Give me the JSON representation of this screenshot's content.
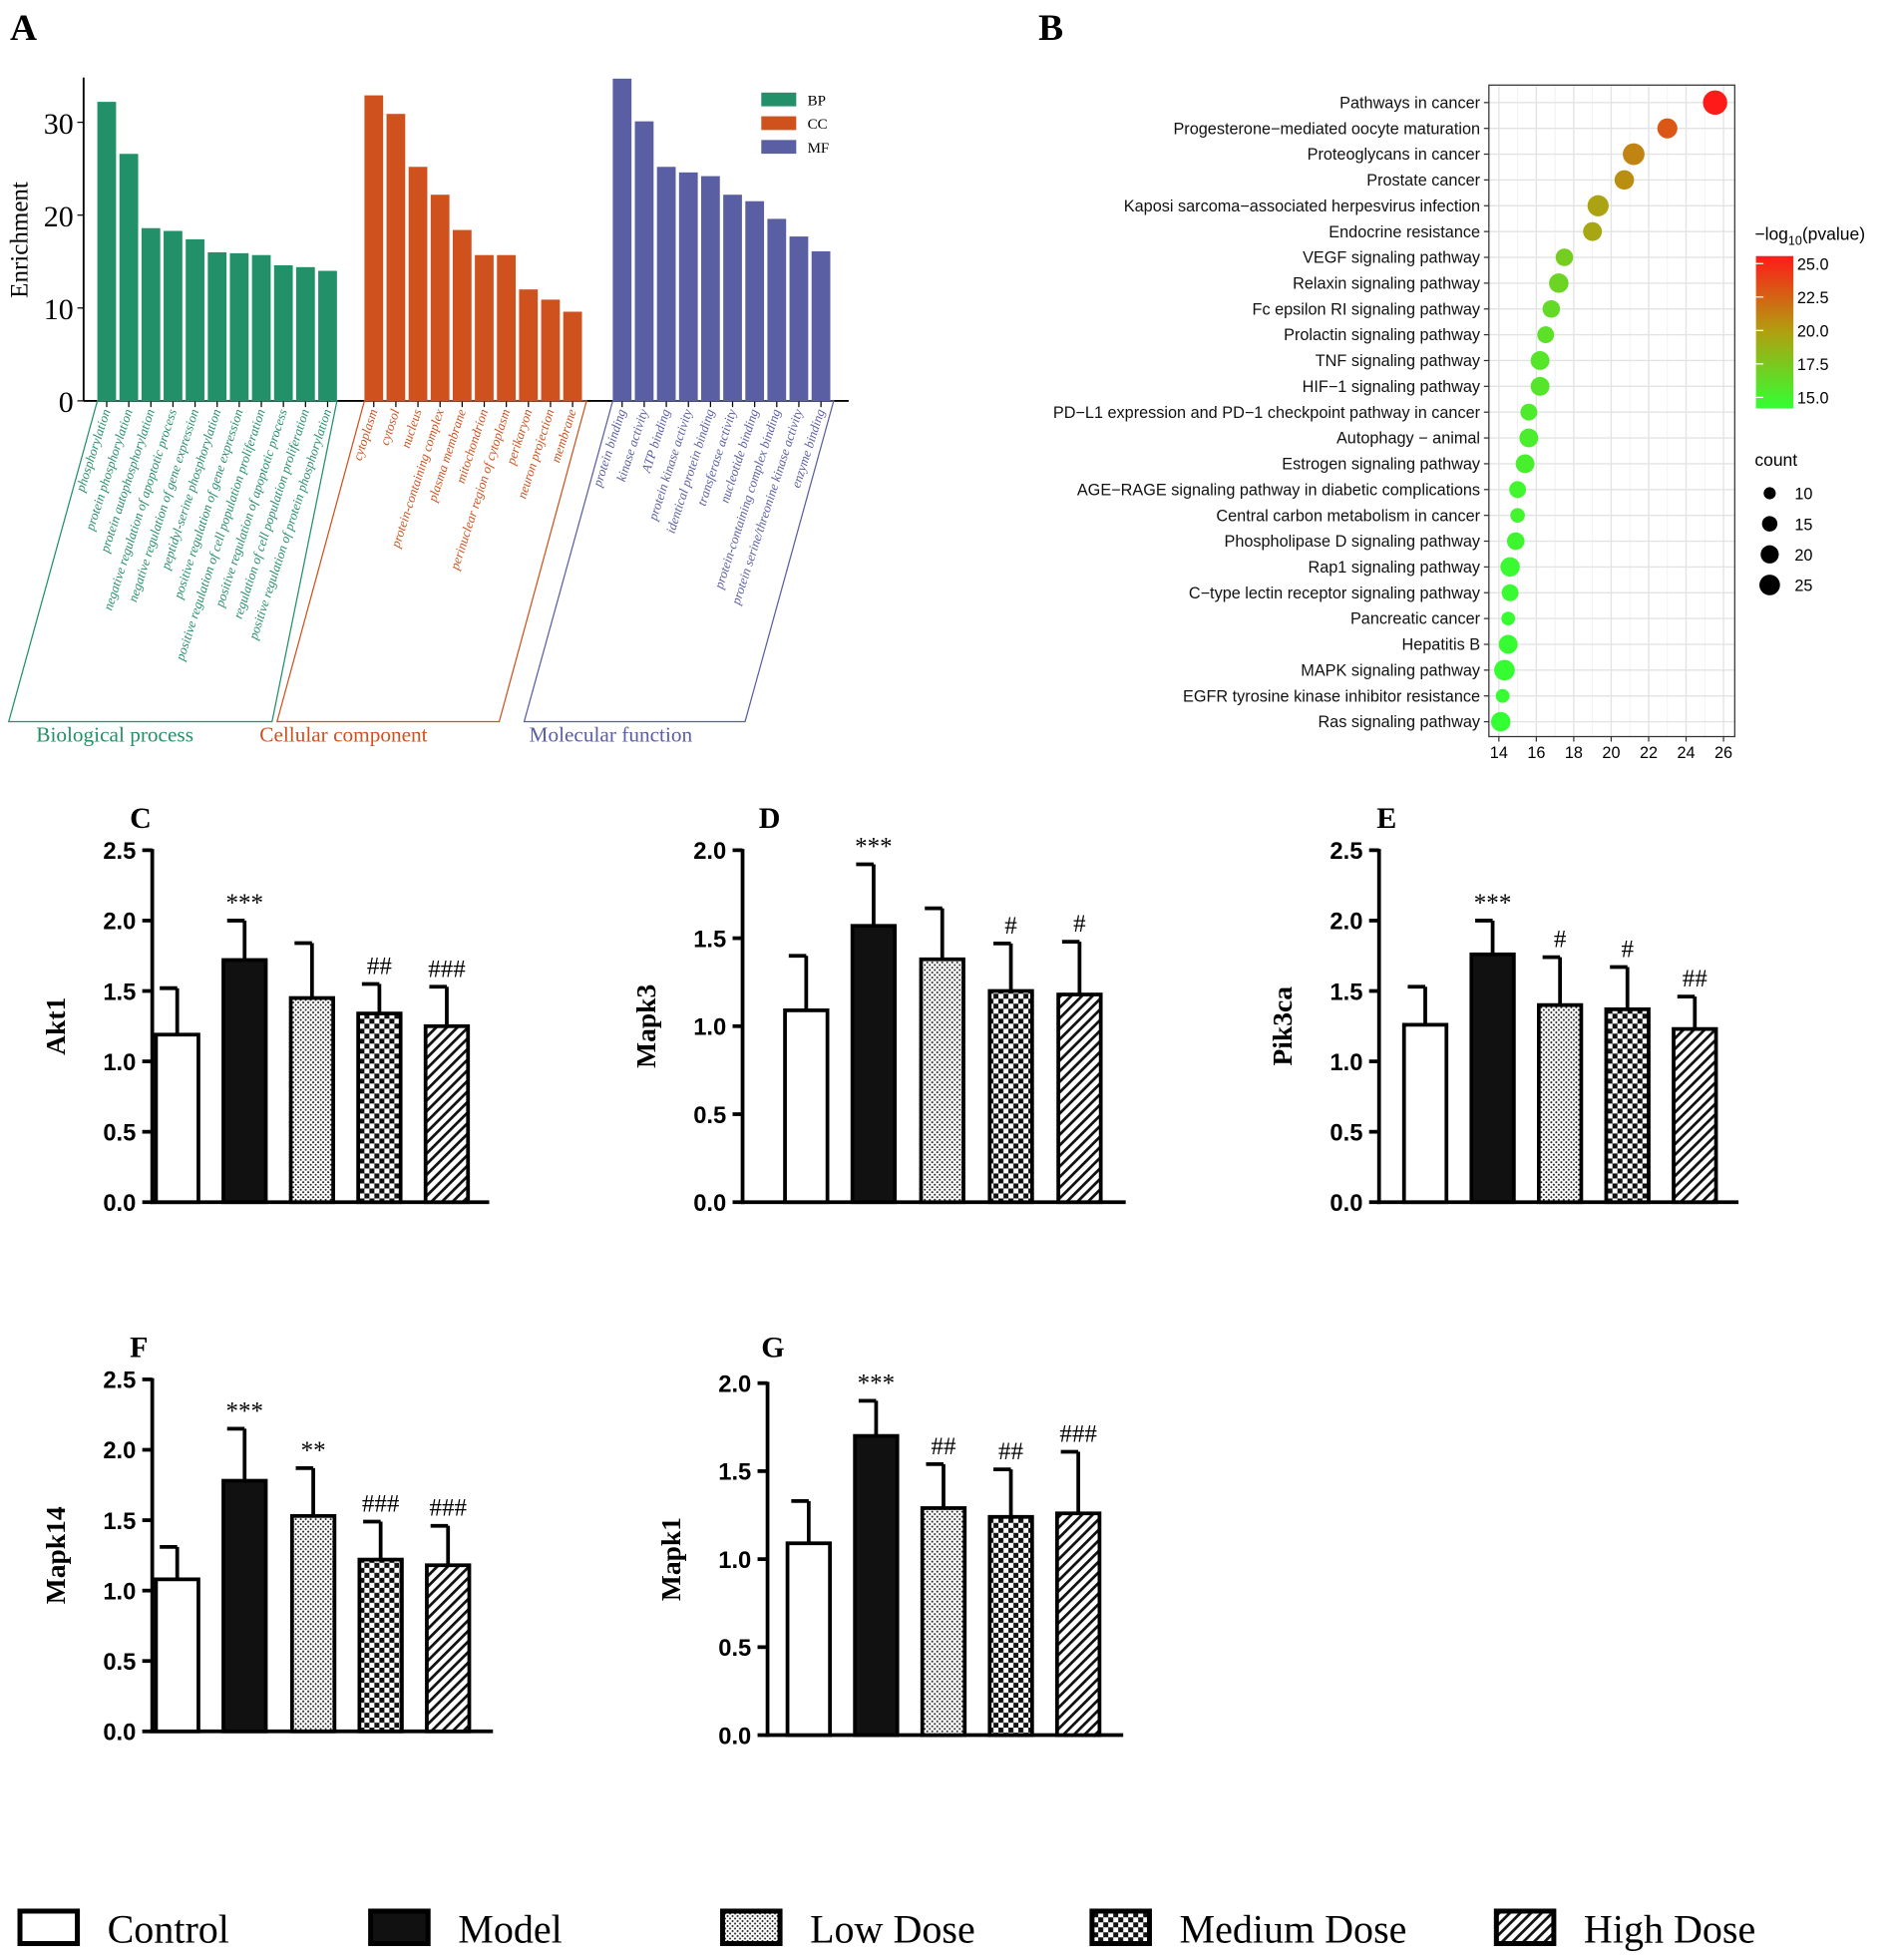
{
  "chart_data": [
    {
      "id": "A",
      "panel_label": "A",
      "type": "bar",
      "ylabel": "Enrichment",
      "ylim": [
        0,
        35
      ],
      "yticks": [
        0,
        10,
        20,
        30
      ],
      "legend": [
        {
          "key": "BP",
          "color": "#229068"
        },
        {
          "key": "CC",
          "color": "#cf511e"
        },
        {
          "key": "MF",
          "color": "#5a5ea3"
        }
      ],
      "groups": [
        {
          "name": "Biological process",
          "key": "BP",
          "color": "#229068",
          "categories": [
            "phosphorylation",
            "protein phosphorylation",
            "protein autophosphorylation",
            "negative regulation of apoptotic process",
            "negative regulation of gene expression",
            "peptidyl-serine phosphorylation",
            "positive regulation of gene expression",
            "positive regulation of cell population proliferation",
            "positive regulation of apoptotic process",
            "regulation of cell population proliferation",
            "positive regulation of protein phosphorylation"
          ],
          "values": [
            32.2,
            26.6,
            18.6,
            18.3,
            17.4,
            16.0,
            15.9,
            15.7,
            14.6,
            14.4,
            14.0
          ]
        },
        {
          "name": "Cellular component",
          "key": "CC",
          "color": "#cf511e",
          "categories": [
            "cytoplasm",
            "cytosol",
            "nucleus",
            "protein-containing complex",
            "plasma membrane",
            "mitochondrion",
            "perinuclear region of cytoplasm",
            "perikaryon",
            "neuron projection",
            "membrane"
          ],
          "values": [
            32.9,
            30.9,
            25.2,
            22.2,
            18.4,
            15.7,
            15.7,
            12.0,
            10.9,
            9.6
          ]
        },
        {
          "name": "Molecular function",
          "key": "MF",
          "color": "#5a5ea3",
          "categories": [
            "protein binding",
            "kinase activity",
            "ATP binding",
            "protein kinase activity",
            "identical protein binding",
            "transferase activity",
            "nucleotide binding",
            "protein-containing complex binding",
            "protein serine/threonine kinase activity",
            "enzyme binding"
          ],
          "values": [
            34.7,
            30.1,
            25.2,
            24.6,
            24.2,
            22.2,
            21.5,
            19.6,
            17.7,
            16.1
          ]
        }
      ]
    },
    {
      "id": "B",
      "panel_label": "B",
      "type": "scatter",
      "xlim": [
        13.8,
        26.6
      ],
      "xticks": [
        14,
        16,
        18,
        20,
        22,
        24,
        26
      ],
      "color_legend_title": "-log10(pvalue)",
      "color_legend_title_parts": [
        "−log",
        "10",
        "(pvalue)"
      ],
      "color_ticks": [
        "25.0",
        "22.5",
        "20.0",
        "17.5",
        "15.0"
      ],
      "color_range": [
        14.5,
        25.5
      ],
      "color_low": "#33ff33",
      "color_high": "#ff1a1a",
      "size_legend_title": "count",
      "size_ticks": [
        10,
        15,
        20,
        25
      ],
      "points": [
        {
          "term": "Pathways in cancer",
          "x": 25.55,
          "neglog10p": 25.5,
          "count": 25
        },
        {
          "term": "Progesterone−mediated oocyte maturation",
          "x": 23.0,
          "neglog10p": 23.0,
          "count": 17
        },
        {
          "term": "Proteoglycans in cancer",
          "x": 21.2,
          "neglog10p": 21.2,
          "count": 20
        },
        {
          "term": "Prostate cancer",
          "x": 20.7,
          "neglog10p": 20.7,
          "count": 16
        },
        {
          "term": "Kaposi sarcoma−associated herpesvirus infection",
          "x": 19.3,
          "neglog10p": 19.8,
          "count": 19
        },
        {
          "term": "Endocrine resistance",
          "x": 19.0,
          "neglog10p": 19.6,
          "count": 15
        },
        {
          "term": "VEGF signaling pathway",
          "x": 17.5,
          "neglog10p": 17.4,
          "count": 13
        },
        {
          "term": "Relaxin signaling pathway",
          "x": 17.2,
          "neglog10p": 17.0,
          "count": 16
        },
        {
          "term": "Fc epsilon RI signaling pathway",
          "x": 16.8,
          "neglog10p": 16.6,
          "count": 13
        },
        {
          "term": "Prolactin signaling pathway",
          "x": 16.5,
          "neglog10p": 16.3,
          "count": 12
        },
        {
          "term": "TNF signaling pathway",
          "x": 16.2,
          "neglog10p": 16.0,
          "count": 15
        },
        {
          "term": "HIF−1 signaling pathway",
          "x": 16.2,
          "neglog10p": 16.0,
          "count": 15
        },
        {
          "term": "PD−L1 expression and PD−1 checkpoint pathway in cancer",
          "x": 15.6,
          "neglog10p": 15.6,
          "count": 12
        },
        {
          "term": "Autophagy − animal",
          "x": 15.6,
          "neglog10p": 15.5,
          "count": 15
        },
        {
          "term": "Estrogen signaling pathway",
          "x": 15.4,
          "neglog10p": 15.4,
          "count": 15
        },
        {
          "term": "AGE−RAGE signaling pathway in diabetic complications",
          "x": 15.0,
          "neglog10p": 15.1,
          "count": 12
        },
        {
          "term": "Central carbon metabolism in cancer",
          "x": 15.0,
          "neglog10p": 15.1,
          "count": 9
        },
        {
          "term": "Phospholipase D signaling pathway",
          "x": 14.9,
          "neglog10p": 15.0,
          "count": 13
        },
        {
          "term": "Rap1 signaling pathway",
          "x": 14.6,
          "neglog10p": 14.8,
          "count": 16
        },
        {
          "term": "C−type lectin receptor signaling pathway",
          "x": 14.6,
          "neglog10p": 14.8,
          "count": 12
        },
        {
          "term": "Pancreatic cancer",
          "x": 14.5,
          "neglog10p": 14.7,
          "count": 8
        },
        {
          "term": "Hepatitis B",
          "x": 14.5,
          "neglog10p": 14.7,
          "count": 15
        },
        {
          "term": "MAPK signaling pathway",
          "x": 14.3,
          "neglog10p": 14.6,
          "count": 18
        },
        {
          "term": "EGFR tyrosine kinase inhibitor resistance",
          "x": 14.2,
          "neglog10p": 14.6,
          "count": 8
        },
        {
          "term": "Ras signaling pathway",
          "x": 14.1,
          "neglog10p": 14.5,
          "count": 16
        }
      ]
    },
    {
      "id": "C",
      "panel_label": "C",
      "type": "bar",
      "ylabel": "Akt1",
      "ylim": [
        0,
        2.5
      ],
      "yticks": [
        "0.0",
        "0.5",
        "1.0",
        "1.5",
        "2.0",
        "2.5"
      ],
      "categories": [
        "Control",
        "Model",
        "Low Dose",
        "Medium Dose",
        "High Dose"
      ],
      "values": [
        1.19,
        1.72,
        1.45,
        1.34,
        1.25
      ],
      "error_upper": [
        1.52,
        2.0,
        1.84,
        1.55,
        1.53
      ],
      "annotations": [
        "",
        "***",
        "",
        "##",
        "###"
      ]
    },
    {
      "id": "D",
      "panel_label": "D",
      "type": "bar",
      "ylabel": "Mapk3",
      "ylim": [
        0,
        2.0
      ],
      "yticks": [
        "0.0",
        "0.5",
        "1.0",
        "1.5",
        "2.0"
      ],
      "categories": [
        "Control",
        "Model",
        "Low Dose",
        "Medium Dose",
        "High Dose"
      ],
      "values": [
        1.09,
        1.57,
        1.38,
        1.2,
        1.18
      ],
      "error_upper": [
        1.4,
        1.92,
        1.67,
        1.47,
        1.48
      ],
      "annotations": [
        "",
        "***",
        "",
        "#",
        "#"
      ]
    },
    {
      "id": "E",
      "panel_label": "E",
      "type": "bar",
      "ylabel": "Pik3ca",
      "ylim": [
        0,
        2.5
      ],
      "yticks": [
        "0.0",
        "0.5",
        "1.0",
        "1.5",
        "2.0",
        "2.5"
      ],
      "categories": [
        "Control",
        "Model",
        "Low Dose",
        "Medium Dose",
        "High Dose"
      ],
      "values": [
        1.26,
        1.76,
        1.4,
        1.37,
        1.23
      ],
      "error_upper": [
        1.53,
        2.0,
        1.74,
        1.67,
        1.46
      ],
      "annotations": [
        "",
        "***",
        "#",
        "#",
        "##"
      ]
    },
    {
      "id": "F",
      "panel_label": "F",
      "type": "bar",
      "ylabel": "Mapk14",
      "ylim": [
        0,
        2.5
      ],
      "yticks": [
        "0.0",
        "0.5",
        "1.0",
        "1.5",
        "2.0",
        "2.5"
      ],
      "categories": [
        "Control",
        "Model",
        "Low Dose",
        "Medium Dose",
        "High Dose"
      ],
      "values": [
        1.08,
        1.78,
        1.53,
        1.22,
        1.18
      ],
      "error_upper": [
        1.31,
        2.15,
        1.87,
        1.49,
        1.46
      ],
      "annotations": [
        "",
        "***",
        "**",
        "###",
        "###"
      ]
    },
    {
      "id": "G",
      "panel_label": "G",
      "type": "bar",
      "ylabel": "Mapk1",
      "ylim": [
        0,
        2.0
      ],
      "yticks": [
        "0.0",
        "0.5",
        "1.0",
        "1.5",
        "2.0"
      ],
      "categories": [
        "Control",
        "Model",
        "Low Dose",
        "Medium Dose",
        "High Dose"
      ],
      "values": [
        1.09,
        1.7,
        1.29,
        1.24,
        1.26
      ],
      "error_upper": [
        1.33,
        1.9,
        1.54,
        1.51,
        1.61
      ],
      "annotations": [
        "",
        "***",
        "##",
        "##",
        "###"
      ]
    }
  ],
  "legend": [
    "Control",
    "Model",
    "Low Dose",
    "Medium Dose",
    "High Dose"
  ]
}
